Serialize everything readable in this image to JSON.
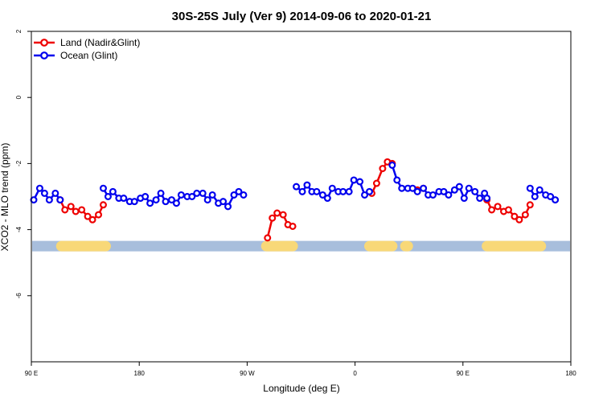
{
  "chart_data": {
    "type": "line",
    "title": "30S-25S July (Ver 9)   2014-09-06 to 2020-01-21",
    "xlabel": "Longitude (deg E)",
    "ylabel": "XCO2 - MLO trend (ppm)",
    "xlim": [
      90,
      540
    ],
    "ylim": [
      -8,
      2
    ],
    "x_ticks": [
      {
        "value": 90,
        "label": "90 E"
      },
      {
        "value": 180,
        "label": "180"
      },
      {
        "value": 270,
        "label": "90 W"
      },
      {
        "value": 360,
        "label": "0"
      },
      {
        "value": 450,
        "label": "90 E"
      },
      {
        "value": 540,
        "label": "180"
      }
    ],
    "y_ticks": [
      {
        "value": 2,
        "label": "2"
      },
      {
        "value": 0,
        "label": "0"
      },
      {
        "value": -2,
        "label": "-2"
      },
      {
        "value": -4,
        "label": "-4"
      },
      {
        "value": -6,
        "label": "-6"
      }
    ],
    "legend_position": "top-left",
    "series": [
      {
        "name": "Land (Nadir&Glint)",
        "color": "#ee0000",
        "segments": [
          [
            [
              114,
              -3.1
            ],
            [
              118,
              -3.4
            ],
            [
              123,
              -3.3
            ],
            [
              127,
              -3.45
            ],
            [
              132,
              -3.4
            ],
            [
              137,
              -3.6
            ],
            [
              141,
              -3.7
            ],
            [
              146,
              -3.55
            ],
            [
              150,
              -3.25
            ]
          ],
          [
            [
              287,
              -4.25
            ],
            [
              291,
              -3.65
            ],
            [
              295,
              -3.5
            ],
            [
              300,
              -3.55
            ],
            [
              304,
              -3.85
            ],
            [
              308,
              -3.9
            ]
          ],
          [
            [
              374,
              -2.9
            ],
            [
              378,
              -2.6
            ],
            [
              383,
              -2.15
            ],
            [
              387,
              -1.95
            ],
            [
              391,
              -2.0
            ]
          ],
          [
            [
              412,
              -2.8
            ],
            [
              417,
              -2.75
            ]
          ],
          [
            [
              470,
              -3.1
            ],
            [
              474,
              -3.4
            ],
            [
              479,
              -3.3
            ],
            [
              484,
              -3.45
            ],
            [
              488,
              -3.4
            ],
            [
              493,
              -3.6
            ],
            [
              497,
              -3.7
            ],
            [
              502,
              -3.55
            ],
            [
              506,
              -3.25
            ]
          ]
        ]
      },
      {
        "name": "Ocean (Glint)",
        "color": "#0000ee",
        "segments": [
          [
            [
              92,
              -3.1
            ],
            [
              97,
              -2.75
            ],
            [
              101,
              -2.9
            ],
            [
              105,
              -3.1
            ],
            [
              110,
              -2.9
            ],
            [
              114,
              -3.1
            ]
          ],
          [
            [
              150,
              -2.75
            ],
            [
              154,
              -3.0
            ],
            [
              158,
              -2.85
            ],
            [
              163,
              -3.05
            ],
            [
              167,
              -3.05
            ],
            [
              172,
              -3.15
            ],
            [
              176,
              -3.15
            ],
            [
              181,
              -3.05
            ],
            [
              185,
              -3.0
            ],
            [
              189,
              -3.2
            ],
            [
              194,
              -3.1
            ],
            [
              198,
              -2.9
            ],
            [
              202,
              -3.15
            ],
            [
              207,
              -3.1
            ],
            [
              211,
              -3.2
            ],
            [
              215,
              -2.95
            ],
            [
              220,
              -3.0
            ],
            [
              224,
              -3.0
            ],
            [
              228,
              -2.9
            ],
            [
              233,
              -2.9
            ],
            [
              237,
              -3.1
            ],
            [
              241,
              -2.95
            ],
            [
              246,
              -3.2
            ],
            [
              250,
              -3.15
            ],
            [
              254,
              -3.3
            ],
            [
              259,
              -2.95
            ],
            [
              263,
              -2.85
            ],
            [
              267,
              -2.95
            ]
          ],
          [
            [
              311,
              -2.7
            ],
            [
              316,
              -2.85
            ],
            [
              320,
              -2.65
            ],
            [
              324,
              -2.85
            ],
            [
              328,
              -2.85
            ],
            [
              333,
              -2.95
            ],
            [
              337,
              -3.05
            ],
            [
              341,
              -2.75
            ],
            [
              346,
              -2.85
            ],
            [
              350,
              -2.85
            ],
            [
              355,
              -2.85
            ],
            [
              359,
              -2.5
            ],
            [
              364,
              -2.55
            ],
            [
              368,
              -2.95
            ],
            [
              372,
              -2.85
            ]
          ],
          [
            [
              391,
              -2.05
            ],
            [
              395,
              -2.5
            ],
            [
              399,
              -2.75
            ],
            [
              404,
              -2.75
            ],
            [
              408,
              -2.75
            ],
            [
              412,
              -2.85
            ],
            [
              417,
              -2.75
            ],
            [
              421,
              -2.95
            ],
            [
              425,
              -2.95
            ],
            [
              430,
              -2.85
            ],
            [
              434,
              -2.85
            ],
            [
              438,
              -2.95
            ],
            [
              443,
              -2.8
            ],
            [
              447,
              -2.7
            ],
            [
              451,
              -3.05
            ],
            [
              455,
              -2.75
            ],
            [
              460,
              -2.85
            ],
            [
              464,
              -3.05
            ],
            [
              468,
              -2.9
            ],
            [
              470,
              -3.05
            ]
          ],
          [
            [
              506,
              -2.75
            ],
            [
              510,
              -3.0
            ],
            [
              514,
              -2.8
            ],
            [
              519,
              -2.95
            ],
            [
              523,
              -3.0
            ],
            [
              527,
              -3.1
            ]
          ]
        ]
      }
    ],
    "surface_band": {
      "y": -4.5,
      "ocean_color": "#a8bedc",
      "land_color": "#f8d878",
      "land_ranges": [
        [
          115,
          152
        ],
        [
          286,
          308
        ],
        [
          372,
          391
        ],
        [
          402,
          404
        ],
        [
          470,
          515
        ]
      ]
    }
  }
}
